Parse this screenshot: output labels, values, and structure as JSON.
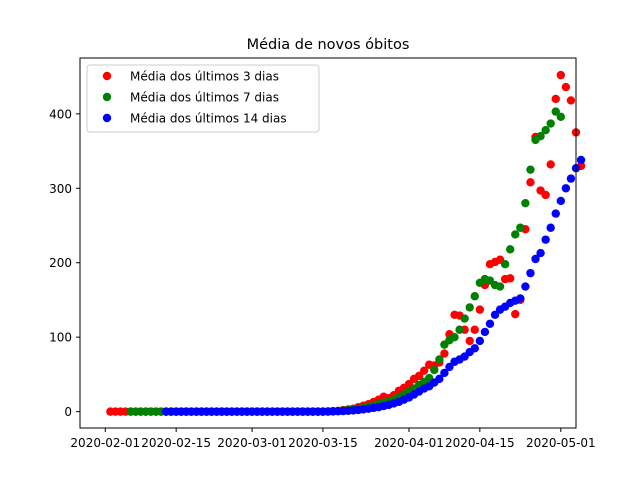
{
  "chart_data": {
    "type": "scatter",
    "title": "Média de novos óbitos",
    "xlabel": "",
    "ylabel": "",
    "xlim": [
      "2020-01-27",
      "2020-05-04"
    ],
    "ylim": [
      -22,
      475
    ],
    "x_ticks": [
      "2020-02-01",
      "2020-02-15",
      "2020-03-01",
      "2020-03-15",
      "2020-04-01",
      "2020-04-15",
      "2020-05-01"
    ],
    "y_ticks": [
      0,
      100,
      200,
      300,
      400
    ],
    "grid": false,
    "legend_position": "top-left",
    "series": [
      {
        "name": "Média dos últimos 3 dias",
        "color": "#ff0000",
        "start": "2020-02-02",
        "end": "2020-05-04",
        "values": [
          0,
          0,
          0,
          0,
          0,
          0,
          0,
          0,
          0,
          0,
          0,
          0,
          0,
          0,
          0,
          0,
          0,
          0,
          0,
          0,
          0,
          0,
          0,
          0,
          0,
          0,
          0,
          0,
          0,
          0,
          0,
          0,
          0,
          0,
          0,
          0,
          0,
          0,
          0,
          0,
          0,
          0,
          0,
          0.3,
          0.7,
          1,
          2,
          3,
          4,
          6,
          8,
          10,
          13,
          16,
          20,
          18,
          22,
          28,
          32,
          37,
          44,
          48,
          55,
          63,
          62,
          66,
          78,
          104,
          130,
          129,
          110,
          95,
          110,
          137,
          170,
          198,
          201,
          204,
          178,
          179,
          131,
          150,
          245,
          308,
          369,
          297,
          291,
          332,
          420,
          452,
          436,
          418,
          375,
          330
        ]
      },
      {
        "name": "Média dos últimos 7 dias",
        "color": "#008000",
        "start": "2020-02-06",
        "end": "2020-05-03",
        "values": [
          0,
          0,
          0,
          0,
          0,
          0,
          0,
          0,
          0,
          0,
          0,
          0,
          0,
          0,
          0,
          0,
          0,
          0,
          0,
          0,
          0,
          0,
          0,
          0,
          0,
          0,
          0,
          0,
          0,
          0,
          0,
          0,
          0,
          0,
          0,
          0,
          0,
          0,
          0,
          0.2,
          0.4,
          0.8,
          1.3,
          2,
          3,
          4,
          5,
          7,
          8,
          10,
          12,
          14,
          16,
          19,
          23,
          27,
          31,
          36,
          40,
          45,
          56,
          70,
          90,
          96,
          100,
          110,
          125,
          140,
          155,
          173,
          178,
          176,
          170,
          168,
          198,
          218,
          238,
          247,
          280,
          325,
          365,
          370,
          378,
          387,
          403,
          396
        ]
      },
      {
        "name": "Média dos últimos 14 dias",
        "color": "#0000ff",
        "start": "2020-02-13",
        "end": "2020-05-03",
        "values": [
          0,
          0,
          0,
          0,
          0,
          0,
          0,
          0,
          0,
          0,
          0,
          0,
          0,
          0,
          0,
          0,
          0,
          0,
          0,
          0,
          0,
          0,
          0,
          0,
          0,
          0,
          0,
          0,
          0,
          0,
          0,
          0,
          0,
          0.2,
          0.4,
          0.7,
          1.1,
          1.6,
          2.2,
          3,
          4,
          5,
          6,
          7.5,
          9,
          11,
          13,
          16,
          19,
          23,
          27,
          31,
          34,
          39,
          44,
          52,
          60,
          67,
          70,
          74,
          80,
          85,
          95,
          107,
          118,
          130,
          137,
          141,
          146,
          149,
          152,
          168,
          186,
          205,
          213,
          231,
          247,
          266,
          283,
          300,
          313,
          327,
          338
        ]
      }
    ]
  }
}
